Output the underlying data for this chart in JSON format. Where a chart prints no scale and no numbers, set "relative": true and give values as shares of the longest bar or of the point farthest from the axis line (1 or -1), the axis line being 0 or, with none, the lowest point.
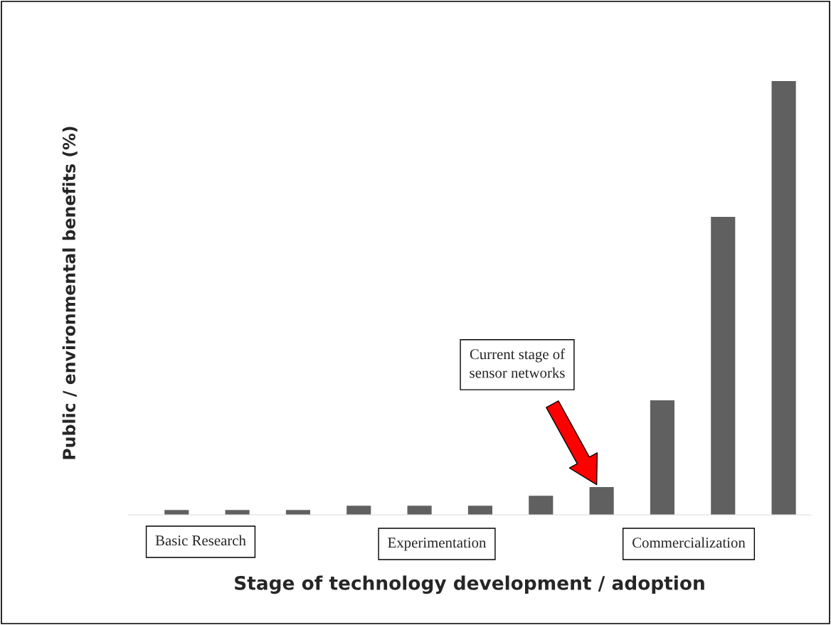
{
  "chart_data": {
    "type": "bar",
    "relative": true,
    "xlabel": "Stage of technology development / adoption",
    "ylabel": "Public / environmental benefits (%)",
    "categories": [
      null,
      null,
      null,
      null,
      null,
      null,
      null,
      null,
      null,
      null,
      null
    ],
    "values": [
      0.011,
      0.011,
      0.011,
      0.021,
      0.021,
      0.021,
      0.044,
      0.064,
      0.264,
      0.687,
      1
    ],
    "color": "#606060",
    "annotations": [
      "Basic Research",
      "Experimentation",
      "Commercialization",
      "Current stage of\nsensor networks"
    ],
    "grid": false,
    "legend": false
  }
}
